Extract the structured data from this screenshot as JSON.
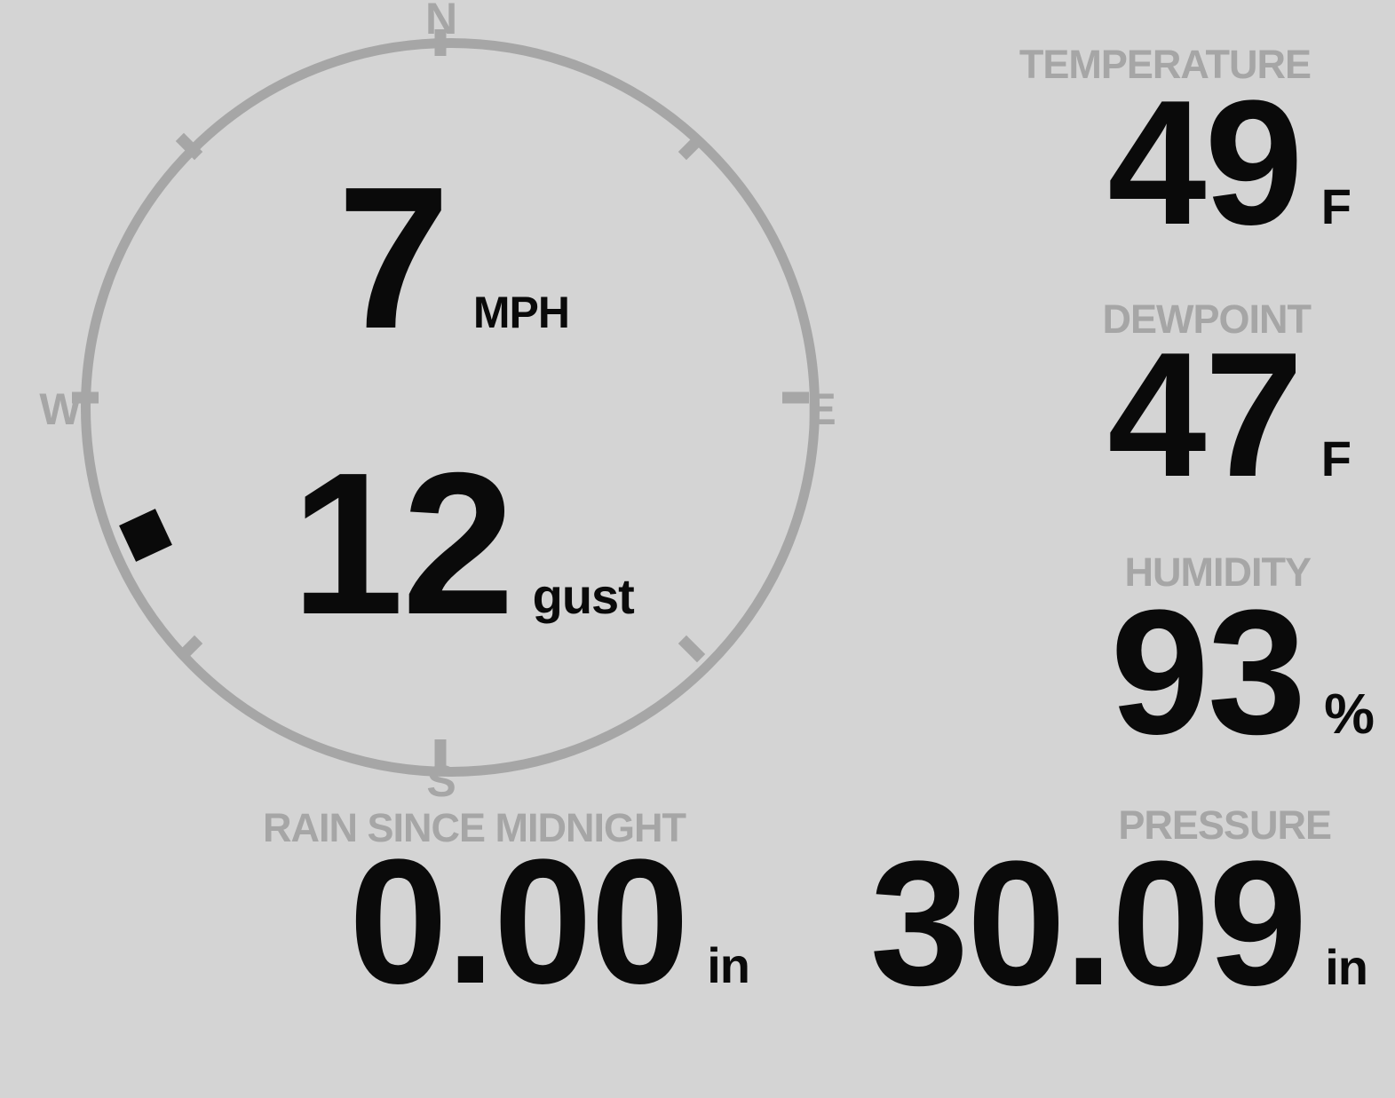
{
  "colors": {
    "background": "#d4d4d4",
    "gray": "#a6a6a6",
    "value_black": "#0a0a0a"
  },
  "compass": {
    "labels": {
      "north": "N",
      "east": "E",
      "south": "S",
      "west": "W"
    },
    "wind_speed": {
      "value": "7",
      "unit": "MPH"
    },
    "wind_gust": {
      "value": "12",
      "unit": "gust"
    },
    "wind_direction_deg": 245
  },
  "metrics": {
    "temperature": {
      "label": "TEMPERATURE",
      "value": "49",
      "unit": "F"
    },
    "dewpoint": {
      "label": "DEWPOINT",
      "value": "47",
      "unit": "F"
    },
    "humidity": {
      "label": "HUMIDITY",
      "value": "93",
      "unit": "%"
    },
    "pressure": {
      "label": "PRESSURE",
      "value": "30.09",
      "unit": "in"
    },
    "rain": {
      "label": "RAIN SINCE MIDNIGHT",
      "value": "0.00",
      "unit": "in"
    }
  }
}
